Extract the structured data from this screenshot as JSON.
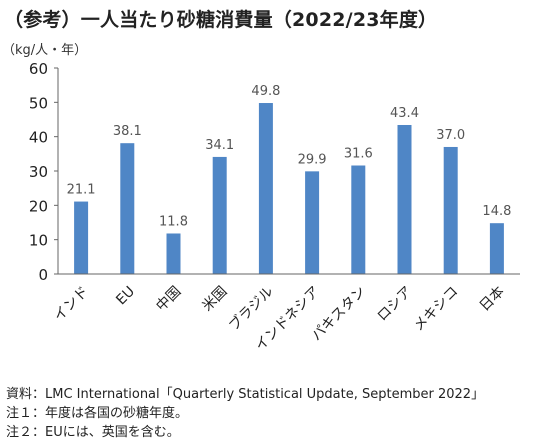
{
  "title": "（参考）一人当たり砂糖消費量（2022/23年度）",
  "chart_data": {
    "type": "bar",
    "title": "（参考）一人当たり砂糖消費量（2022/23年度）",
    "unit_label": "（kg/人・年）",
    "ylim": [
      0,
      60
    ],
    "yticks": [
      0,
      10,
      20,
      30,
      40,
      50,
      60
    ],
    "grid": false,
    "legend": "none",
    "bar_color": "#4f86c6",
    "categories": [
      "インド",
      "EU",
      "中国",
      "米国",
      "ブラジル",
      "インドネシア",
      "パキスタン",
      "ロシア",
      "メキシコ",
      "日本"
    ],
    "values": [
      21.1,
      38.1,
      11.8,
      34.1,
      49.8,
      29.9,
      31.6,
      43.4,
      37.0,
      14.8
    ],
    "value_labels": [
      "21.1",
      "38.1",
      "11.8",
      "34.1",
      "49.8",
      "29.9",
      "31.6",
      "43.4",
      "37.0",
      "14.8"
    ]
  },
  "notes": [
    "資料：LMC International「Quarterly Statistical Update, September 2022」",
    "注１：年度は各国の砂糖年度。",
    "注２：EUには、英国を含む。"
  ]
}
